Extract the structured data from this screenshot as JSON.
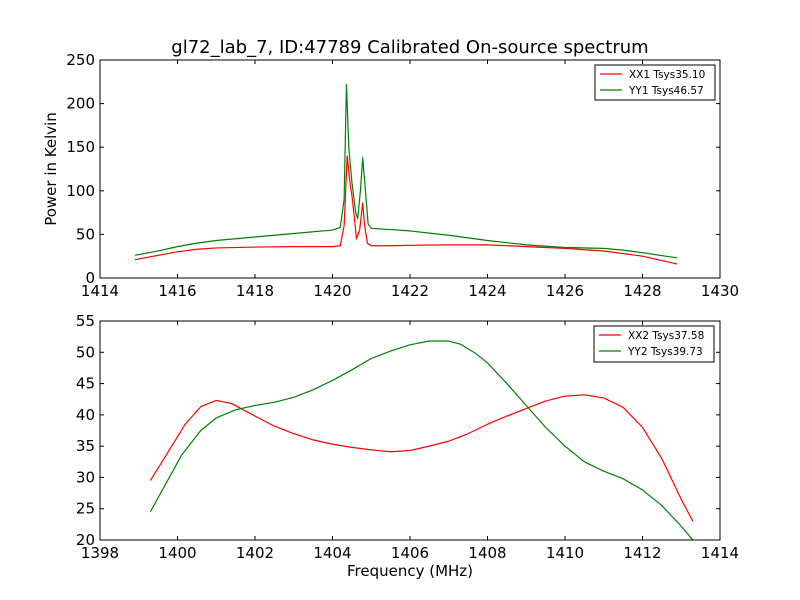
{
  "title": "gl72_lab_7, ID:47789 Calibrated On-source spectrum",
  "chart_data": [
    {
      "type": "line",
      "title": "gl72_lab_7, ID:47789 Calibrated On-source spectrum",
      "xlabel": "",
      "ylabel": "Power in Kelvin",
      "xlim": [
        1414,
        1430
      ],
      "ylim": [
        0,
        250
      ],
      "xticks": [
        1414,
        1416,
        1418,
        1420,
        1422,
        1424,
        1426,
        1428,
        1430
      ],
      "yticks": [
        0,
        50,
        100,
        150,
        200,
        250
      ],
      "grid": false,
      "legend_position": "top-right",
      "series": [
        {
          "name": "XX1 Tsys35.10",
          "color": "#ff0000",
          "points": [
            [
              1414.9,
              21
            ],
            [
              1415.5,
              26
            ],
            [
              1416,
              30
            ],
            [
              1416.5,
              33
            ],
            [
              1417,
              34.5
            ],
            [
              1418,
              35.5
            ],
            [
              1419,
              36
            ],
            [
              1419.5,
              36
            ],
            [
              1420,
              36
            ],
            [
              1420.2,
              37
            ],
            [
              1420.3,
              60
            ],
            [
              1420.38,
              140
            ],
            [
              1420.45,
              110
            ],
            [
              1420.5,
              95
            ],
            [
              1420.55,
              75
            ],
            [
              1420.62,
              45
            ],
            [
              1420.7,
              55
            ],
            [
              1420.78,
              86
            ],
            [
              1420.83,
              60
            ],
            [
              1420.9,
              40
            ],
            [
              1421,
              37
            ],
            [
              1421.5,
              37
            ],
            [
              1422,
              37.5
            ],
            [
              1423,
              38
            ],
            [
              1424,
              38
            ],
            [
              1425,
              36
            ],
            [
              1426,
              34
            ],
            [
              1427,
              31
            ],
            [
              1428,
              25
            ],
            [
              1428.9,
              16
            ]
          ]
        },
        {
          "name": "YY1 Tsys46.57",
          "color": "#008000",
          "points": [
            [
              1414.9,
              26
            ],
            [
              1415.5,
              31
            ],
            [
              1416,
              36
            ],
            [
              1416.5,
              40
            ],
            [
              1417,
              43
            ],
            [
              1418,
              47
            ],
            [
              1419,
              51
            ],
            [
              1420,
              55
            ],
            [
              1420.2,
              58
            ],
            [
              1420.3,
              90
            ],
            [
              1420.36,
              222
            ],
            [
              1420.42,
              150
            ],
            [
              1420.5,
              110
            ],
            [
              1420.6,
              75
            ],
            [
              1420.65,
              68
            ],
            [
              1420.72,
              100
            ],
            [
              1420.78,
              138
            ],
            [
              1420.84,
              105
            ],
            [
              1420.92,
              62
            ],
            [
              1421,
              57
            ],
            [
              1422,
              54
            ],
            [
              1423,
              49
            ],
            [
              1424,
              43
            ],
            [
              1425,
              38
            ],
            [
              1426,
              35
            ],
            [
              1427,
              34
            ],
            [
              1427.5,
              32
            ],
            [
              1428,
              29
            ],
            [
              1428.9,
              23
            ]
          ]
        }
      ]
    },
    {
      "type": "line",
      "title": "",
      "xlabel": "Frequency (MHz)",
      "ylabel": "",
      "xlim": [
        1398,
        1414
      ],
      "ylim": [
        20,
        55
      ],
      "xticks": [
        1398,
        1400,
        1402,
        1404,
        1406,
        1408,
        1410,
        1412,
        1414
      ],
      "yticks": [
        20,
        25,
        30,
        35,
        40,
        45,
        50,
        55
      ],
      "grid": false,
      "legend_position": "top-right",
      "series": [
        {
          "name": "XX2 Tsys37.58",
          "color": "#ff0000",
          "points": [
            [
              1399.3,
              29.5
            ],
            [
              1399.8,
              34.5
            ],
            [
              1400.2,
              38.5
            ],
            [
              1400.6,
              41.3
            ],
            [
              1401,
              42.3
            ],
            [
              1401.4,
              41.8
            ],
            [
              1402,
              39.8
            ],
            [
              1402.5,
              38.2
            ],
            [
              1403,
              37
            ],
            [
              1403.5,
              36
            ],
            [
              1404,
              35.3
            ],
            [
              1404.5,
              34.8
            ],
            [
              1405,
              34.4
            ],
            [
              1405.5,
              34.1
            ],
            [
              1406,
              34.3
            ],
            [
              1406.5,
              35
            ],
            [
              1407,
              35.8
            ],
            [
              1407.5,
              37
            ],
            [
              1408,
              38.5
            ],
            [
              1408.5,
              39.8
            ],
            [
              1409,
              41
            ],
            [
              1409.5,
              42.2
            ],
            [
              1410,
              43
            ],
            [
              1410.5,
              43.2
            ],
            [
              1411,
              42.7
            ],
            [
              1411.5,
              41.2
            ],
            [
              1412,
              38
            ],
            [
              1412.5,
              33
            ],
            [
              1413,
              26.5
            ],
            [
              1413.3,
              23
            ]
          ]
        },
        {
          "name": "YY2 Tsys39.73",
          "color": "#008000",
          "points": [
            [
              1399.3,
              24.5
            ],
            [
              1399.7,
              29
            ],
            [
              1400.1,
              33.5
            ],
            [
              1400.6,
              37.5
            ],
            [
              1401,
              39.5
            ],
            [
              1401.5,
              40.8
            ],
            [
              1402,
              41.5
            ],
            [
              1402.5,
              42
            ],
            [
              1403,
              42.8
            ],
            [
              1403.5,
              44
            ],
            [
              1404,
              45.5
            ],
            [
              1404.5,
              47.2
            ],
            [
              1405,
              49
            ],
            [
              1405.5,
              50.2
            ],
            [
              1406,
              51.2
            ],
            [
              1406.5,
              51.8
            ],
            [
              1407,
              51.8
            ],
            [
              1407.3,
              51.3
            ],
            [
              1407.7,
              49.8
            ],
            [
              1408,
              48.3
            ],
            [
              1408.5,
              45
            ],
            [
              1409,
              41.5
            ],
            [
              1409.5,
              38
            ],
            [
              1410,
              35
            ],
            [
              1410.5,
              32.5
            ],
            [
              1411,
              31
            ],
            [
              1411.5,
              29.8
            ],
            [
              1412,
              28
            ],
            [
              1412.5,
              25.5
            ],
            [
              1413,
              22.2
            ],
            [
              1413.3,
              20
            ]
          ]
        }
      ]
    }
  ]
}
